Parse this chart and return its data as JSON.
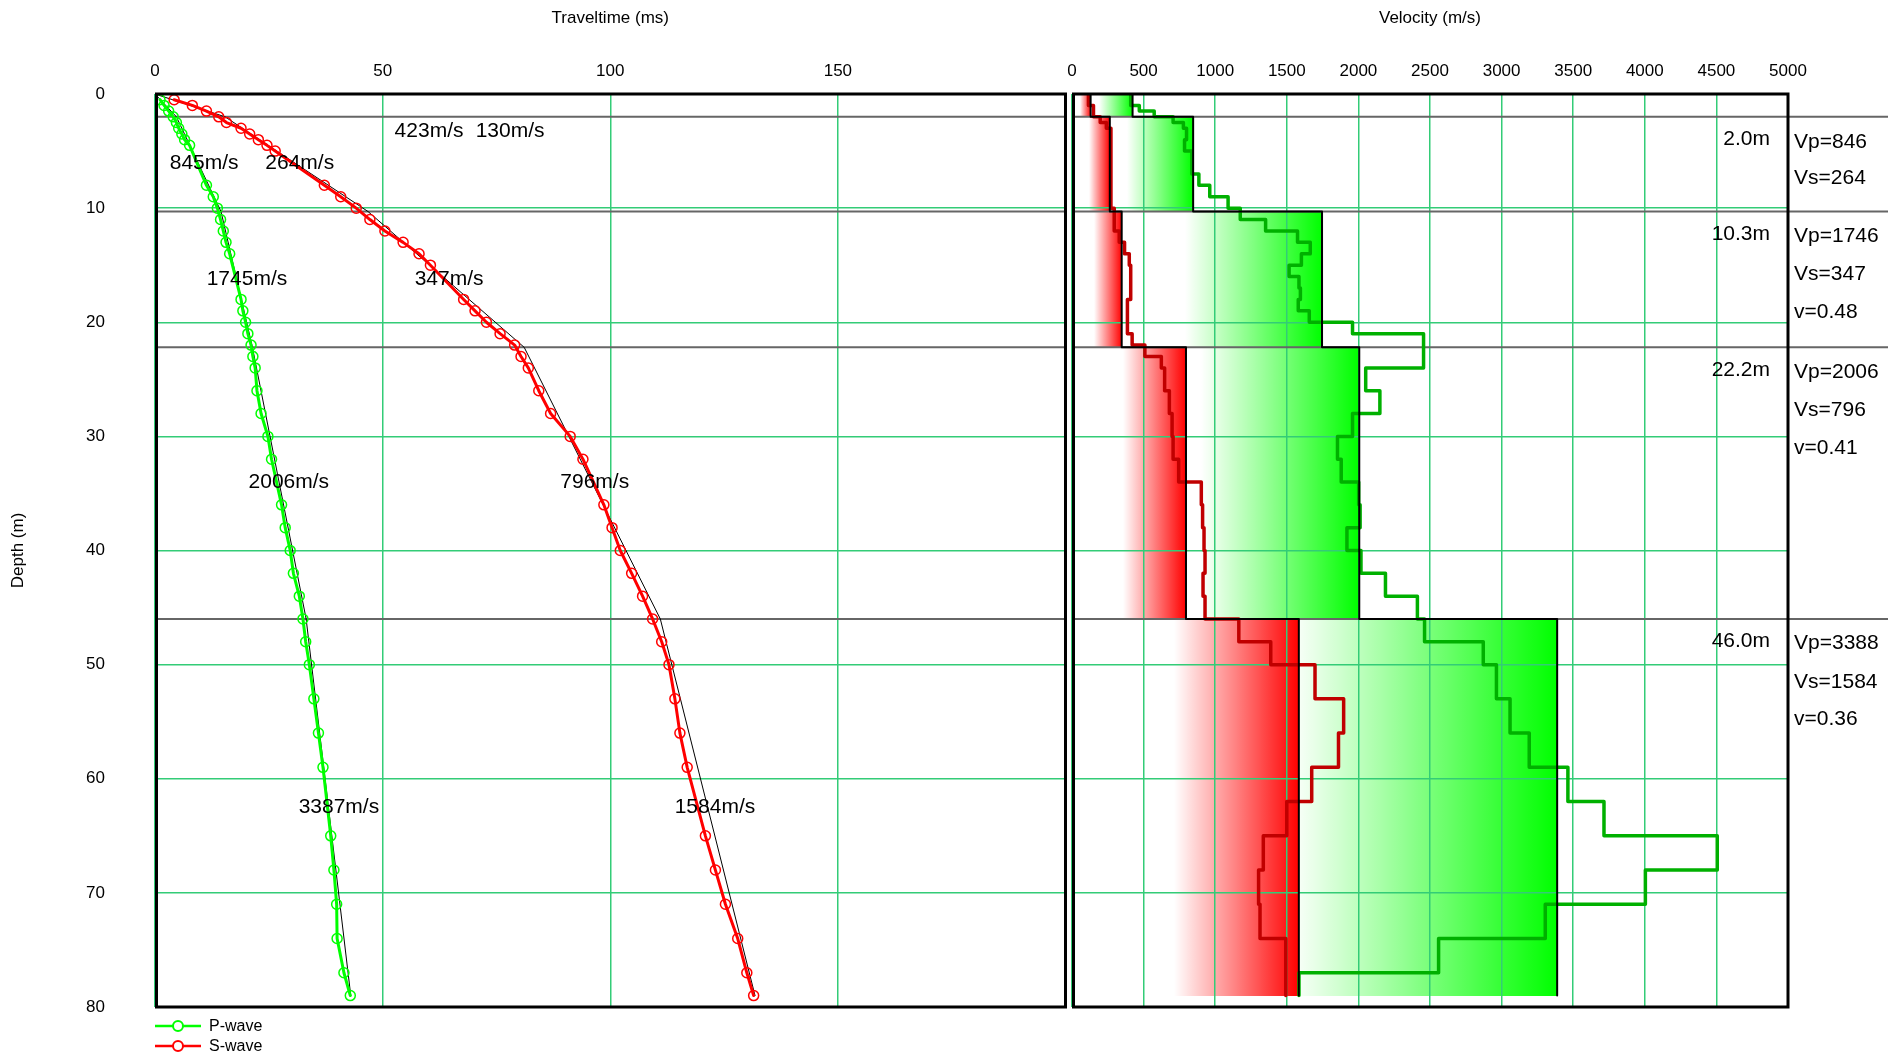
{
  "chart_data": [
    {
      "type": "line",
      "xlabel": "Traveltime (ms)",
      "ylabel": "Depth (m)",
      "xlim": [
        0,
        200
      ],
      "xticks": [
        0,
        50,
        100,
        150
      ],
      "ylim": [
        80,
        0
      ],
      "yticks": [
        0,
        10,
        20,
        30,
        40,
        50,
        60,
        70,
        80
      ],
      "grid": true,
      "legend": "bottom left",
      "marker": "circle",
      "series": [
        {
          "name": "P-wave",
          "color": "#00ff00",
          "x": [
            1.1,
            2.0,
            3.0,
            4.0,
            4.7,
            5.2,
            5.9,
            6.5,
            7.6,
            11.3,
            12.8,
            13.7,
            14.4,
            15.0,
            15.6,
            16.4,
            18.9,
            19.3,
            19.9,
            20.4,
            21.1,
            21.5,
            22.0,
            22.4,
            23.3,
            24.8,
            25.6,
            27.8,
            28.6,
            29.7,
            30.4,
            31.7,
            32.5,
            33.1,
            33.9,
            34.9,
            35.9,
            36.9,
            38.6,
            39.3,
            39.9,
            40.0,
            41.5,
            42.9
          ],
          "values": [
            0.5,
            1,
            1.5,
            2,
            2.5,
            3,
            3.5,
            4,
            4.5,
            8,
            9,
            10,
            11,
            12,
            13,
            14,
            18,
            19,
            20,
            21,
            22,
            23,
            24,
            26,
            28,
            30,
            32,
            36,
            38,
            40,
            42,
            44,
            46,
            48,
            50,
            53,
            56,
            59,
            65,
            68,
            71,
            74,
            77,
            79
          ]
        },
        {
          "name": "S-wave",
          "color": "#ff0000",
          "x": [
            4.2,
            8.2,
            11.3,
            14.0,
            15.7,
            18.9,
            20.8,
            22.7,
            24.6,
            26.4,
            37.2,
            40.8,
            44.2,
            47.2,
            50.5,
            54.5,
            58.0,
            60.5,
            67.8,
            70.3,
            72.8,
            75.8,
            79.0,
            80.4,
            82.0,
            84.3,
            86.9,
            91.2,
            94.0,
            98.6,
            100.4,
            102.2,
            104.7,
            107.1,
            109.3,
            111.3,
            112.9,
            114.2,
            115.3,
            116.9,
            120.9,
            123.1,
            125.3,
            128.0,
            130.0,
            131.5
          ],
          "values": [
            0.5,
            1,
            1.5,
            2,
            2.5,
            3,
            3.5,
            4,
            4.5,
            5,
            8,
            9,
            10,
            11,
            12,
            13,
            14,
            15,
            18,
            19,
            20,
            21,
            22,
            23,
            24,
            26,
            28,
            30,
            32,
            36,
            38,
            40,
            42,
            44,
            46,
            48,
            50,
            53,
            56,
            59,
            65,
            68,
            71,
            74,
            77,
            79
          ]
        },
        {
          "type": "line",
          "marker": "none",
          "color": "#000000",
          "x": [
            0,
            4.7,
            14.5,
            21.4,
            33.2,
            43.0
          ],
          "values": [
            0,
            2,
            10.3,
            22.2,
            46,
            79
          ]
        },
        {
          "type": "line",
          "marker": "none",
          "color": "#000000",
          "x": [
            0,
            15.4,
            46.8,
            81.1,
            111.0,
            131.8
          ],
          "values": [
            0,
            2,
            10.3,
            22.2,
            46,
            79
          ]
        }
      ],
      "ref_lines": [
        {
          "axis": "y",
          "value": 2.0,
          "color": "#666666"
        },
        {
          "axis": "y",
          "value": 10.3,
          "color": "#666666"
        },
        {
          "axis": "y",
          "value": 22.2,
          "color": "#666666"
        },
        {
          "axis": "y",
          "value": 46.0,
          "color": "#666666"
        }
      ],
      "annotations": [
        "423m/s",
        "130m/s",
        "845m/s",
        "264m/s",
        "1745m/s",
        "347m/s",
        "2006m/s",
        "796m/s",
        "3387m/s",
        "1584m/s"
      ]
    },
    {
      "type": "step",
      "xlabel": "Velocity (m/s)",
      "xlim": [
        0,
        5000
      ],
      "xticks": [
        0,
        500,
        1000,
        1500,
        2000,
        2500,
        3000,
        3500,
        4000,
        4500,
        5000
      ],
      "ylim": [
        80,
        0
      ],
      "yticks": [
        0,
        10,
        20,
        30,
        40,
        50,
        60,
        70,
        80
      ],
      "tick_labels": "x",
      "grid": true,
      "marker": "none",
      "series": [
        {
          "color": "#000000",
          "x": [
            423,
            846,
            1746,
            2006,
            3388,
            3388
          ],
          "values": [
            0,
            2,
            10.3,
            22.2,
            46,
            79
          ]
        },
        {
          "color": "#000000",
          "x": [
            130,
            264,
            347,
            796,
            1584,
            1584
          ],
          "values": [
            0,
            2,
            10.3,
            22.2,
            46,
            79
          ]
        },
        {
          "color": "#00b000",
          "x": [
            410,
            470,
            574,
            706,
            778,
            800,
            786,
            837,
            886,
            962,
            1090,
            1175,
            1352,
            1575,
            1664,
            1602,
            1516,
            1585,
            1595,
            1580,
            1657,
            1959,
            2455,
            2051,
            2150,
            1959,
            1854,
            1880,
            2002,
            2012,
            1920,
            2018,
            2189,
            2412,
            2462,
            2872,
            2964,
            3059,
            3193,
            3463,
            3715,
            4506,
            4004,
            3305,
            2560,
            1585,
            1585
          ],
          "values": [
            0,
            1,
            1.5,
            2,
            2.5,
            3,
            4,
            5,
            7,
            8,
            9,
            10,
            11,
            12,
            13,
            14,
            15,
            16,
            17,
            18,
            19,
            20,
            21,
            24,
            26,
            28,
            30,
            32,
            34,
            36,
            38,
            40,
            42,
            44,
            46,
            48,
            50,
            53,
            56,
            59,
            62,
            65,
            68,
            71,
            74,
            77,
            79
          ]
        },
        {
          "color": "#c00000",
          "x": [
            115,
            150,
            197,
            240,
            272,
            295,
            330,
            367,
            400,
            410,
            387,
            387,
            420,
            509,
            624,
            647,
            680,
            699,
            706,
            745,
            903,
            912,
            922,
            929,
            915,
            929,
            1165,
            1388,
            1697,
            1897,
            1861,
            1674,
            1500,
            1336,
            1303,
            1313,
            1493,
            1493
          ],
          "values": [
            0,
            1,
            2,
            2.5,
            3,
            10,
            12,
            13,
            14,
            15,
            18,
            20,
            21,
            22,
            23,
            24,
            26,
            28,
            30,
            32,
            34,
            36,
            38,
            40,
            42,
            44,
            46,
            48,
            50,
            53,
            56,
            59,
            62,
            65,
            68,
            71,
            74,
            79
          ]
        }
      ],
      "ref_lines": [
        {
          "axis": "y",
          "value": 2.0,
          "label": "2.0m",
          "color": "#666666"
        },
        {
          "axis": "y",
          "value": 10.3,
          "label": "10.3m",
          "color": "#666666"
        },
        {
          "axis": "y",
          "value": 22.2,
          "label": "22.2m",
          "color": "#666666"
        },
        {
          "axis": "y",
          "value": 46.0,
          "label": "46.0m",
          "color": "#666666"
        }
      ],
      "annotations": [
        "Vp=846",
        "Vs=264",
        "Vp=1746",
        "Vs=347",
        "v=0.48",
        "Vp=2006",
        "Vs=796",
        "v=0.41",
        "Vp=3388",
        "Vs=1584",
        "v=0.36"
      ]
    }
  ]
}
